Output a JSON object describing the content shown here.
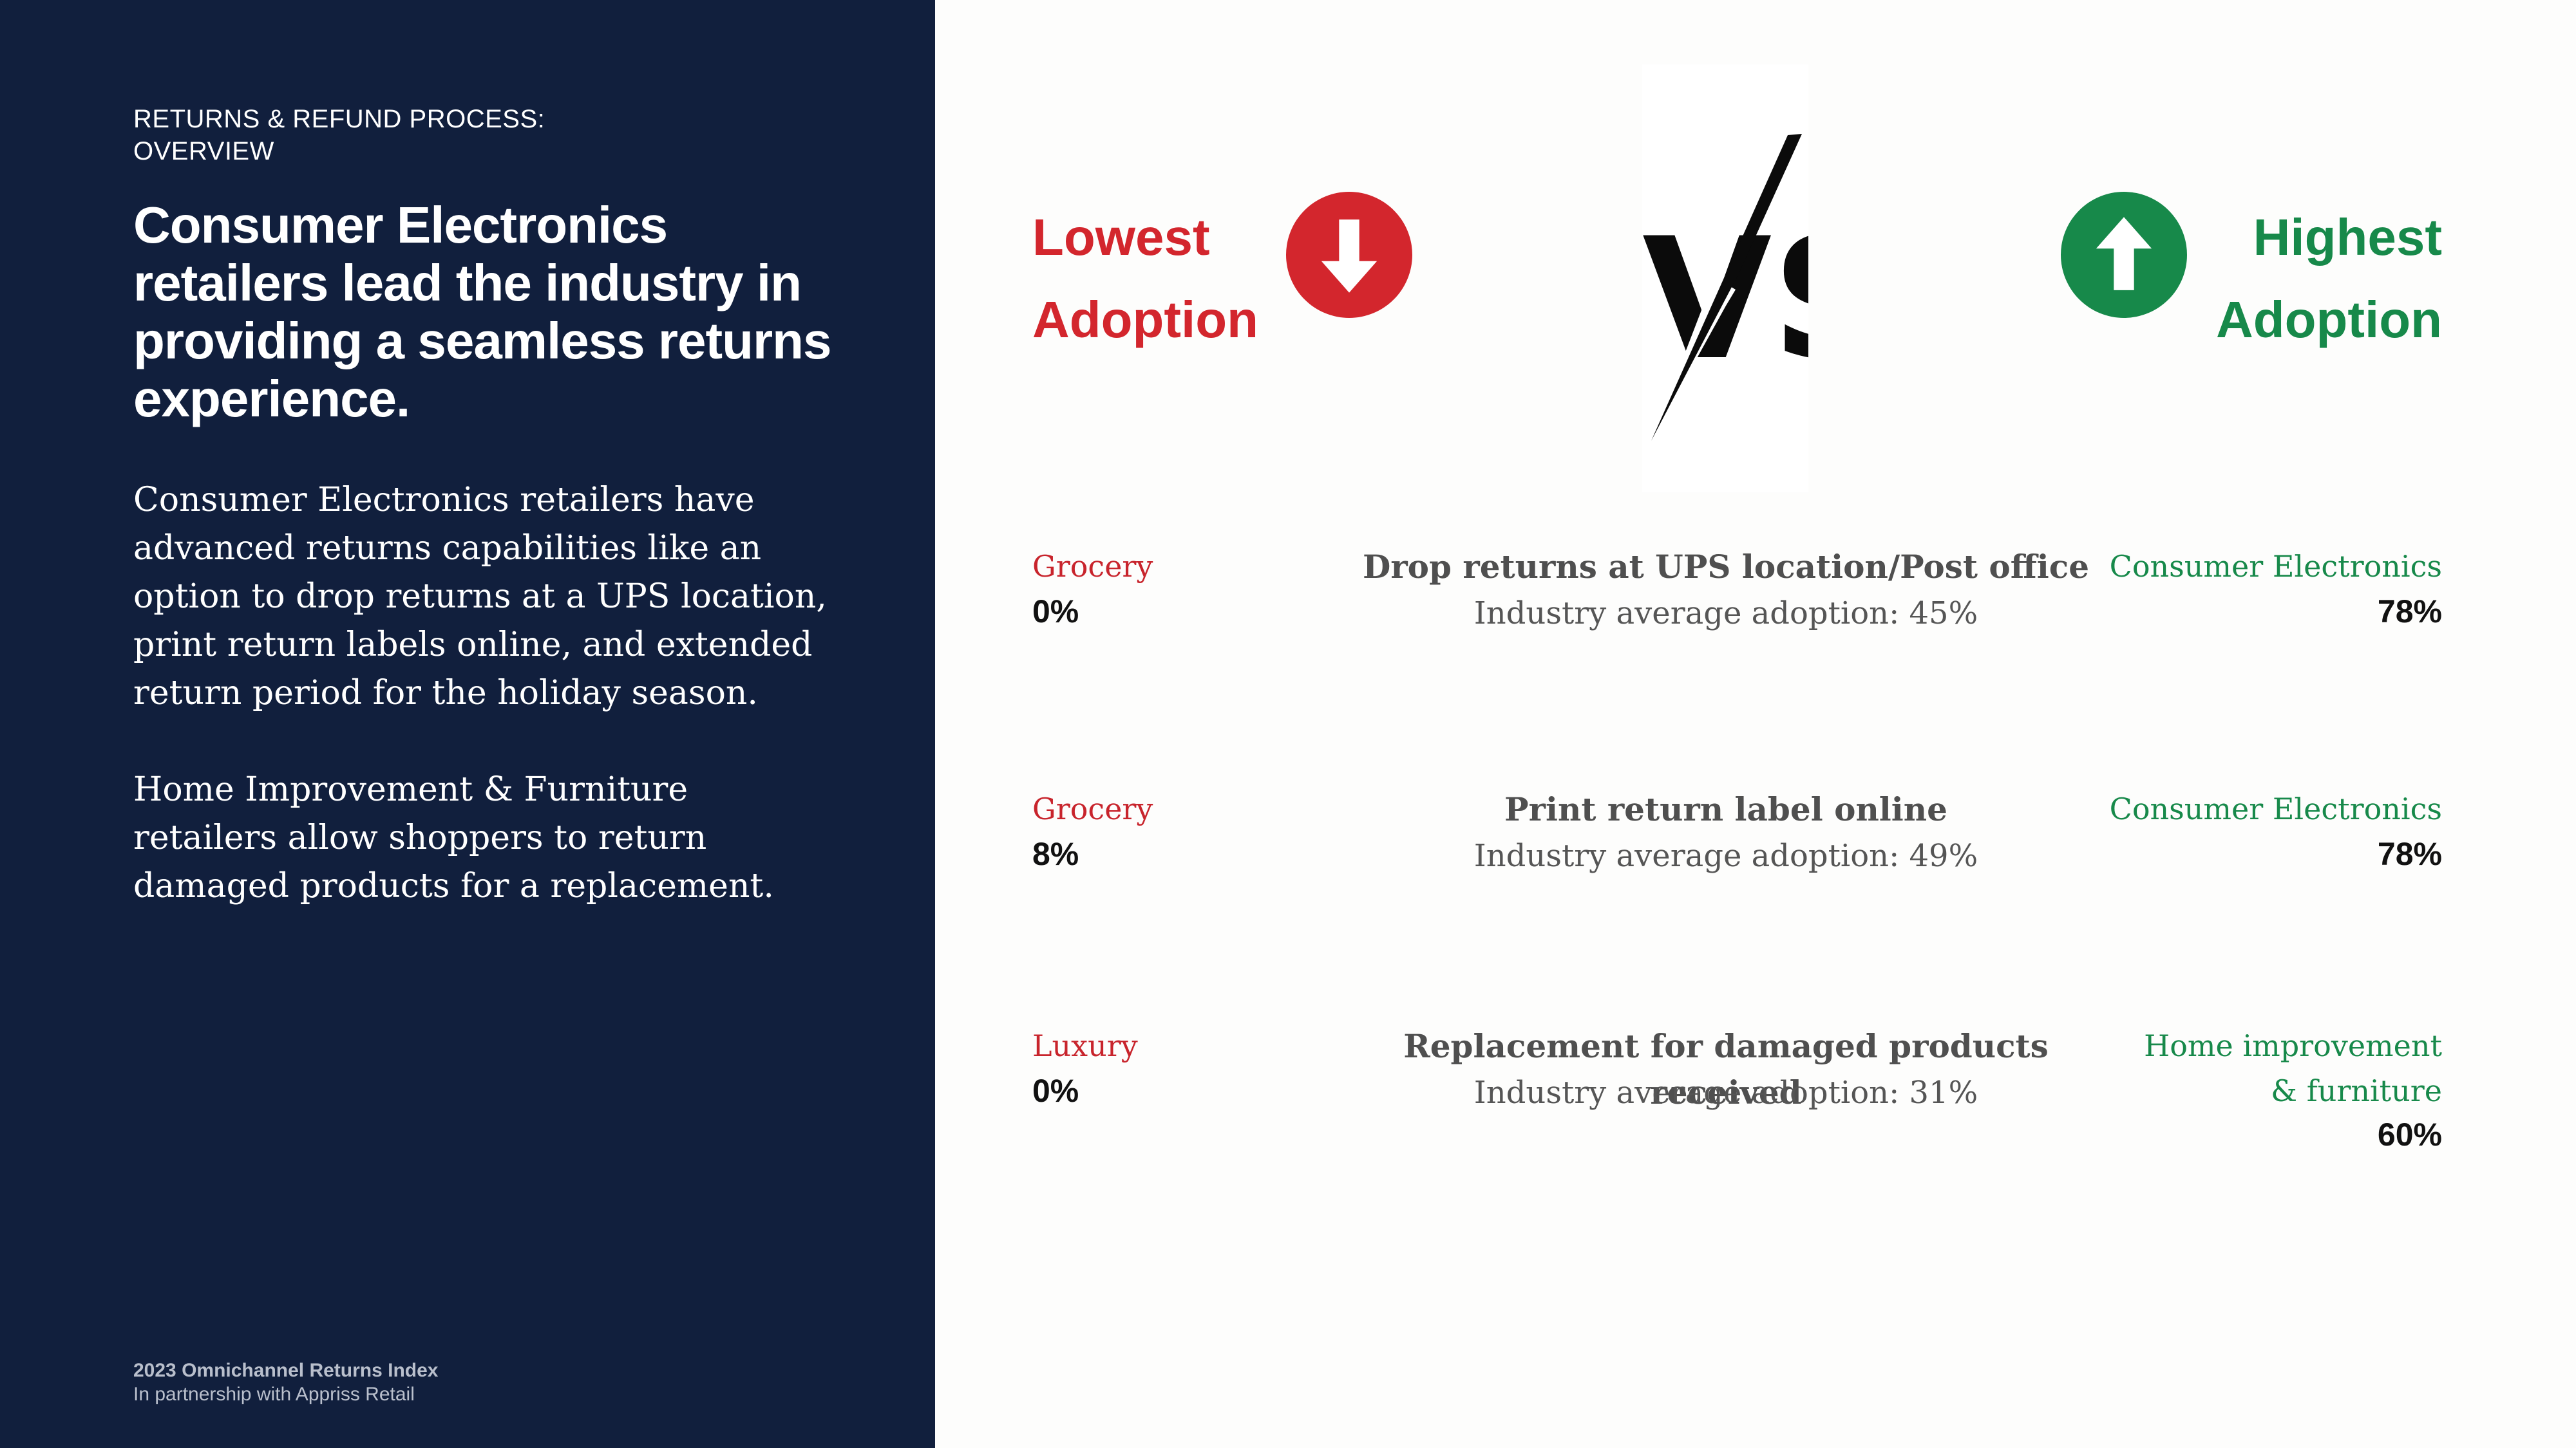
{
  "sidebar": {
    "eyebrow": [
      "RETURNS & REFUND PROCESS:",
      "OVERVIEW"
    ],
    "headline": "Consumer Electronics retailers lead the industry in providing a seamless returns experience.",
    "paragraphs": [
      "Consumer Electronics retailers have advanced returns capabilities like an option to drop returns at a UPS location, print return labels online, and extended return period for the holiday season.",
      "Home Improvement & Furniture retailers allow shoppers to return damaged products for a replacement."
    ],
    "footer": {
      "title": "2023 Omnichannel Returns Index",
      "subtitle": "In partnership with Appriss Retail"
    },
    "background_color": "#111f3d"
  },
  "header": {
    "lowest": [
      "Lowest",
      "Adoption"
    ],
    "highest": [
      "Highest",
      "Adoption"
    ],
    "vs_text": "VS",
    "lowest_color": "#d3262d",
    "highest_color": "#17894a",
    "lowest_icon": "arrow-down-circle-icon",
    "highest_icon": "arrow-up-circle-icon"
  },
  "rows": [
    {
      "feature": "Drop returns at UPS location/Post office",
      "industry_average": "Industry average adoption: 45%",
      "lowest": {
        "segment": "Grocery",
        "value": "0%"
      },
      "highest": {
        "segment": "Consumer Electronics",
        "value": "78%"
      }
    },
    {
      "feature": "Print return label online",
      "industry_average": "Industry average adoption: 49%",
      "lowest": {
        "segment": "Grocery",
        "value": "8%"
      },
      "highest": {
        "segment": "Consumer Electronics",
        "value": "78%"
      }
    },
    {
      "feature": "Replacement for damaged products received",
      "industry_average": "Industry average adoption: 31%",
      "lowest": {
        "segment": "Luxury",
        "value": "0%"
      },
      "highest": {
        "segment_lines": [
          "Home improvement",
          "& furniture"
        ],
        "value": "60%"
      }
    }
  ]
}
